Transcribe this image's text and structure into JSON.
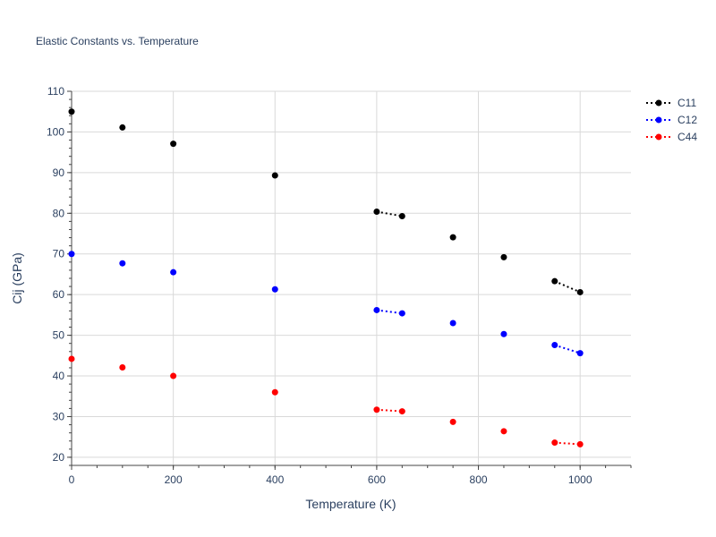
{
  "chart_data": {
    "type": "scatter",
    "title": "Elastic Constants vs. Temperature",
    "xlabel": "Temperature (K)",
    "ylabel": "Cij (GPa)",
    "xlim": [
      0,
      1100
    ],
    "ylim": [
      18,
      110
    ],
    "x_ticks": [
      0,
      200,
      400,
      600,
      800,
      1000
    ],
    "y_ticks": [
      20,
      30,
      40,
      50,
      60,
      70,
      80,
      90,
      100,
      110
    ],
    "grid": true,
    "legend_position": "top-right",
    "x": [
      0,
      100,
      200,
      400,
      600,
      650,
      750,
      850,
      950,
      1000
    ],
    "series": [
      {
        "name": "C11",
        "color": "#000000",
        "values": [
          105.0,
          101.1,
          97.1,
          89.3,
          80.4,
          79.3,
          74.1,
          69.2,
          63.3,
          60.6
        ],
        "dotted_segments": [
          [
            4,
            5
          ],
          [
            8,
            9
          ]
        ]
      },
      {
        "name": "C12",
        "color": "#0000ff",
        "values": [
          70.0,
          67.7,
          65.5,
          61.3,
          56.2,
          55.4,
          53.0,
          50.3,
          47.6,
          45.6
        ],
        "dotted_segments": [
          [
            4,
            5
          ],
          [
            8,
            9
          ]
        ]
      },
      {
        "name": "C44",
        "color": "#ff0000",
        "values": [
          44.2,
          42.1,
          40.0,
          36.0,
          31.7,
          31.3,
          28.7,
          26.4,
          23.6,
          23.2
        ],
        "dotted_segments": [
          [
            4,
            5
          ],
          [
            8,
            9
          ]
        ]
      }
    ]
  }
}
